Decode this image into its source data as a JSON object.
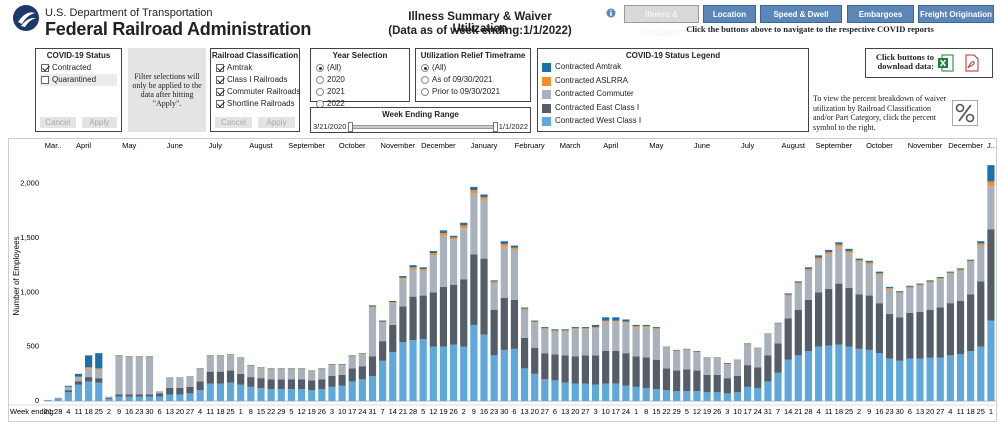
{
  "header": {
    "agency_line1": "U.S. Department of Transportation",
    "agency_line2": "Federal Railroad Administration",
    "title": "Illness Summary & Waiver Utilization",
    "subtitle": "(Data as of week ending:1/1/2022)"
  },
  "nav": {
    "buttons": [
      {
        "label": "Illness & Utilization",
        "active": true
      },
      {
        "label": "Location",
        "active": false
      },
      {
        "label": "Speed & Dwell",
        "active": false
      },
      {
        "label": "Embargoes",
        "active": false
      },
      {
        "label": "Freight Origination",
        "active": false
      }
    ],
    "note": "Click the buttons above to navigate to the respective COVID reports"
  },
  "filters": {
    "status": {
      "title": "COVID-19 Status",
      "options": [
        {
          "label": "Contracted",
          "checked": true
        },
        {
          "label": "Quarantined",
          "checked": false
        }
      ],
      "buttons": [
        "Cancel",
        "Apply"
      ]
    },
    "filter_note": "Filter selections will only be applied to the data after hitting \"Apply\".",
    "classification": {
      "title": "Railroad Classification",
      "options": [
        {
          "label": "Amtrak",
          "checked": true
        },
        {
          "label": "Class I Railroads",
          "checked": true
        },
        {
          "label": "Commuter Railroads",
          "checked": true
        },
        {
          "label": "Shortline Railroads",
          "checked": true
        }
      ],
      "buttons": [
        "Cancel",
        "Apply"
      ]
    },
    "year": {
      "title": "Year Selection",
      "options": [
        {
          "label": "(All)",
          "selected": true
        },
        {
          "label": "2020",
          "selected": false
        },
        {
          "label": "2021",
          "selected": false
        },
        {
          "label": "2022",
          "selected": false
        }
      ]
    },
    "timeframe": {
      "title": "Utilization Relief Timeframe",
      "options": [
        {
          "label": "(All)",
          "selected": true
        },
        {
          "label": "As of 09/30/2021",
          "selected": false
        },
        {
          "label": "Prior to 09/30/2021",
          "selected": false
        }
      ]
    },
    "week_range": {
      "title": "Week Ending Range",
      "start": "3/21/2020",
      "end": "1/1/2022"
    }
  },
  "download": {
    "label": "Click buttons to download data:"
  },
  "percent_note": "To view the percent breakdown of waiver utilization by Railroad Classification and/or Part Category, click the percent symbol to the right.",
  "chart_data": {
    "type": "stacked_bar",
    "legend_title": "COVID-19 Status Legend",
    "y_label": "Number of Employees",
    "x_label": "Week ending:",
    "month_groups": [
      {
        "label": "Mar..",
        "weeks": [
          "21",
          "28"
        ]
      },
      {
        "label": "April",
        "weeks": [
          "4",
          "11",
          "18",
          "25"
        ]
      },
      {
        "label": "May",
        "weeks": [
          "2",
          "9",
          "16",
          "23",
          "30"
        ]
      },
      {
        "label": "June",
        "weeks": [
          "6",
          "13",
          "20",
          "27"
        ]
      },
      {
        "label": "July",
        "weeks": [
          "4",
          "11",
          "18",
          "25"
        ]
      },
      {
        "label": "August",
        "weeks": [
          "1",
          "8",
          "15",
          "22",
          "29"
        ]
      },
      {
        "label": "September",
        "weeks": [
          "5",
          "12",
          "19",
          "26"
        ]
      },
      {
        "label": "October",
        "weeks": [
          "3",
          "10",
          "17",
          "24",
          "31"
        ]
      },
      {
        "label": "November",
        "weeks": [
          "7",
          "14",
          "21",
          "28"
        ]
      },
      {
        "label": "December",
        "weeks": [
          "5",
          "12",
          "19",
          "26"
        ]
      },
      {
        "label": "January",
        "weeks": [
          "2",
          "9",
          "16",
          "23",
          "30"
        ]
      },
      {
        "label": "February",
        "weeks": [
          "6",
          "13",
          "20",
          "27"
        ]
      },
      {
        "label": "March",
        "weeks": [
          "6",
          "13",
          "20",
          "27"
        ]
      },
      {
        "label": "April",
        "weeks": [
          "3",
          "10",
          "17",
          "24"
        ]
      },
      {
        "label": "May",
        "weeks": [
          "1",
          "8",
          "15",
          "22",
          "29"
        ]
      },
      {
        "label": "June",
        "weeks": [
          "5",
          "12",
          "19",
          "26"
        ]
      },
      {
        "label": "July",
        "weeks": [
          "3",
          "10",
          "17",
          "24",
          "31"
        ]
      },
      {
        "label": "August",
        "weeks": [
          "7",
          "14",
          "21",
          "28"
        ]
      },
      {
        "label": "September",
        "weeks": [
          "4",
          "11",
          "18",
          "25"
        ]
      },
      {
        "label": "October",
        "weeks": [
          "2",
          "9",
          "16",
          "23",
          "30"
        ]
      },
      {
        "label": "November",
        "weeks": [
          "6",
          "13",
          "20",
          "27"
        ]
      },
      {
        "label": "December",
        "weeks": [
          "4",
          "11",
          "18",
          "25"
        ]
      },
      {
        "label": "J..",
        "weeks": [
          "1"
        ]
      }
    ],
    "series": [
      {
        "name": "Contracted Amtrak",
        "color": "#1f6faa",
        "values": [
          0,
          0,
          10,
          25,
          110,
          140,
          0,
          5,
          5,
          5,
          5,
          0,
          0,
          0,
          0,
          5,
          5,
          5,
          5,
          5,
          5,
          5,
          5,
          5,
          5,
          5,
          5,
          5,
          5,
          5,
          5,
          5,
          10,
          10,
          10,
          15,
          20,
          15,
          20,
          25,
          15,
          25,
          30,
          25,
          10,
          25,
          20,
          10,
          10,
          10,
          10,
          10,
          10,
          10,
          20,
          30,
          30,
          20,
          10,
          10,
          10,
          5,
          5,
          5,
          5,
          5,
          5,
          5,
          5,
          5,
          5,
          5,
          5,
          10,
          10,
          15,
          20,
          20,
          20,
          20,
          15,
          15,
          15,
          10,
          10,
          10,
          10,
          10,
          10,
          10,
          10,
          10,
          20,
          150
        ]
      },
      {
        "name": "Contracted ASLRRA",
        "color": "#f28e2b",
        "values": [
          0,
          0,
          0,
          5,
          10,
          10,
          0,
          5,
          5,
          5,
          5,
          0,
          0,
          0,
          0,
          5,
          5,
          5,
          5,
          5,
          5,
          5,
          5,
          5,
          5,
          5,
          5,
          5,
          5,
          5,
          5,
          5,
          10,
          10,
          10,
          15,
          20,
          15,
          20,
          25,
          15,
          25,
          30,
          25,
          10,
          25,
          20,
          10,
          10,
          10,
          10,
          10,
          10,
          10,
          10,
          10,
          10,
          10,
          10,
          10,
          10,
          5,
          5,
          5,
          5,
          5,
          5,
          5,
          5,
          5,
          5,
          5,
          5,
          10,
          10,
          15,
          20,
          20,
          20,
          20,
          15,
          15,
          15,
          10,
          10,
          10,
          10,
          10,
          10,
          10,
          10,
          10,
          20,
          40
        ]
      },
      {
        "name": "Contracted Commuter",
        "color": "#a9b1bc",
        "values": [
          2,
          5,
          30,
          40,
          80,
          80,
          10,
          350,
          340,
          340,
          340,
          20,
          100,
          100,
          100,
          110,
          140,
          140,
          140,
          140,
          100,
          90,
          90,
          90,
          90,
          90,
          80,
          90,
          100,
          90,
          110,
          110,
          450,
          170,
          200,
          250,
          250,
          230,
          340,
          470,
          420,
          470,
          560,
          540,
          250,
          470,
          460,
          260,
          230,
          220,
          210,
          220,
          250,
          240,
          250,
          270,
          270,
          280,
          270,
          280,
          280,
          190,
          180,
          180,
          170,
          150,
          150,
          130,
          140,
          190,
          170,
          190,
          180,
          210,
          240,
          270,
          300,
          320,
          340,
          320,
          300,
          290,
          260,
          230,
          220,
          230,
          240,
          250,
          260,
          270,
          280,
          300,
          330,
          400
        ]
      },
      {
        "name": "Contracted East Class I",
        "color": "#555d69",
        "values": [
          3,
          5,
          20,
          30,
          40,
          40,
          10,
          20,
          20,
          20,
          20,
          30,
          60,
          60,
          60,
          80,
          110,
          110,
          110,
          100,
          90,
          90,
          90,
          90,
          90,
          90,
          90,
          90,
          100,
          100,
          120,
          120,
          180,
          180,
          250,
          330,
          400,
          400,
          500,
          550,
          550,
          620,
          650,
          700,
          420,
          480,
          450,
          280,
          240,
          240,
          240,
          250,
          250,
          260,
          270,
          300,
          300,
          300,
          280,
          280,
          270,
          200,
          190,
          200,
          190,
          160,
          160,
          140,
          150,
          200,
          190,
          240,
          270,
          380,
          420,
          470,
          500,
          520,
          560,
          540,
          500,
          500,
          460,
          410,
          400,
          420,
          430,
          440,
          460,
          480,
          490,
          520,
          600,
          840
        ]
      },
      {
        "name": "Contracted West Class I",
        "color": "#5fa8dc",
        "values": [
          5,
          20,
          80,
          150,
          180,
          170,
          20,
          40,
          40,
          40,
          40,
          40,
          60,
          60,
          70,
          100,
          160,
          160,
          170,
          150,
          130,
          120,
          110,
          110,
          110,
          110,
          100,
          110,
          130,
          140,
          180,
          200,
          230,
          370,
          450,
          540,
          560,
          570,
          500,
          500,
          520,
          500,
          700,
          610,
          420,
          470,
          480,
          300,
          250,
          200,
          190,
          170,
          160,
          160,
          150,
          160,
          160,
          140,
          130,
          120,
          110,
          100,
          90,
          90,
          90,
          80,
          80,
          70,
          80,
          130,
          120,
          180,
          260,
          380,
          420,
          460,
          500,
          510,
          520,
          500,
          480,
          470,
          440,
          390,
          370,
          390,
          390,
          400,
          400,
          420,
          430,
          460,
          500,
          740
        ]
      }
    ],
    "ylim": [
      0,
      2300
    ],
    "yticks": [
      0,
      500,
      {
        "value": 1000,
        "label": "1,000"
      },
      {
        "value": 1500,
        "label": "1,500"
      },
      {
        "value": 2000,
        "label": "2,000"
      }
    ],
    "grid": false
  }
}
